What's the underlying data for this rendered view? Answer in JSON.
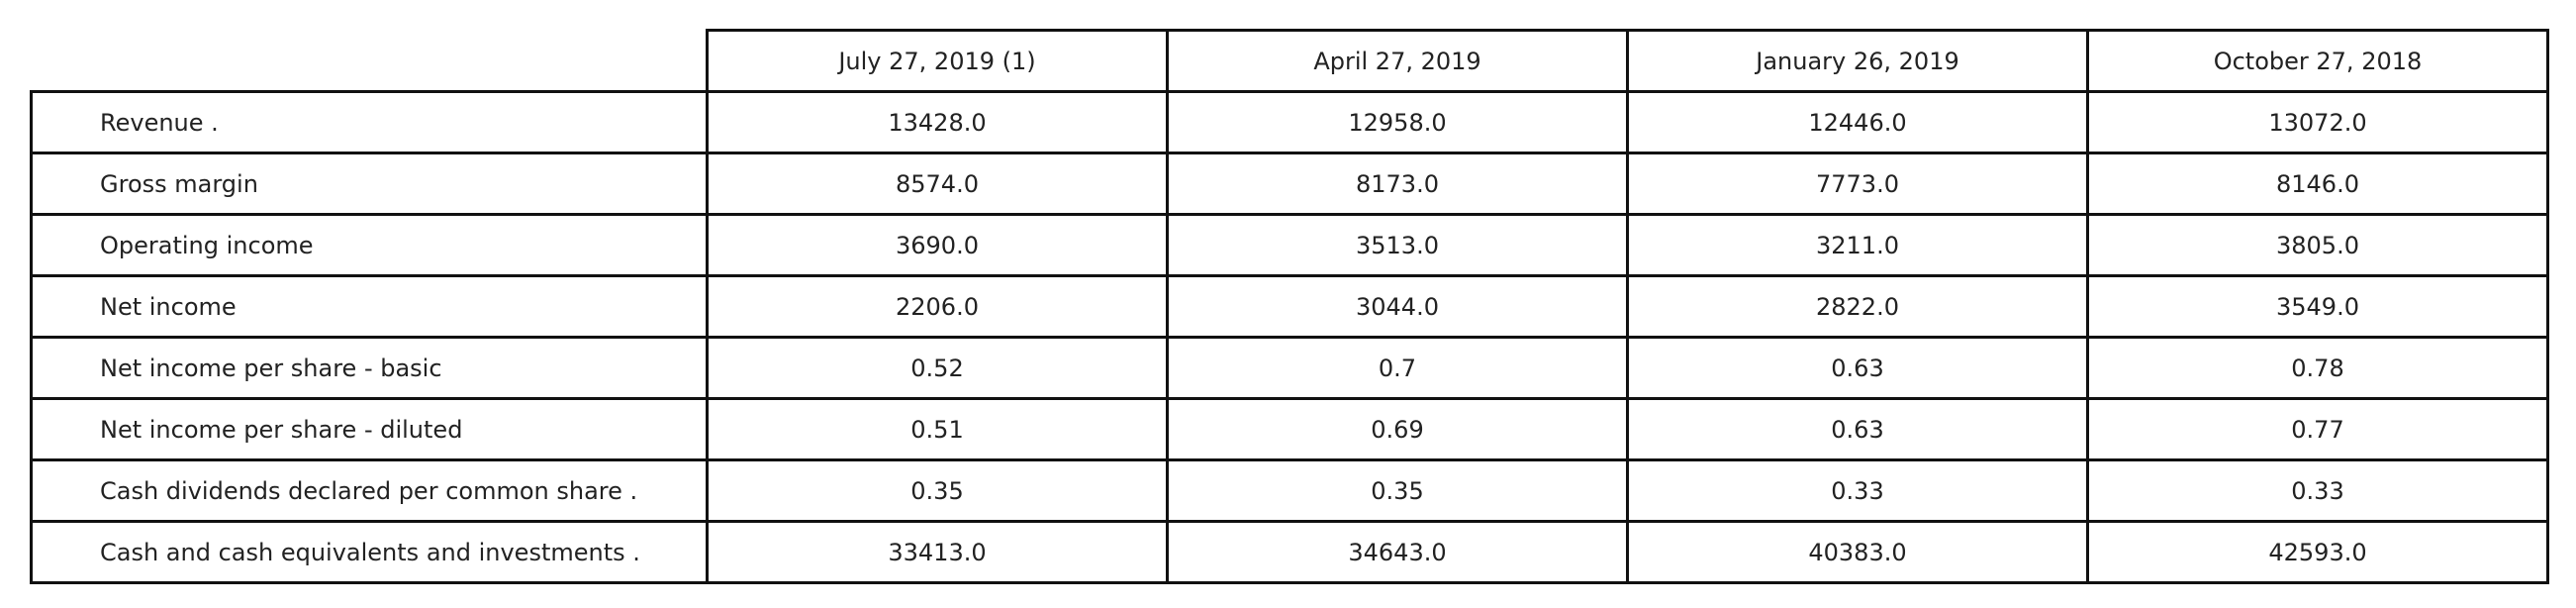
{
  "chart_data": {
    "type": "table",
    "columns": [
      "July 27, 2019 (1)",
      "April 27, 2019",
      "January 26, 2019",
      "October 27, 2018"
    ],
    "rows": [
      {
        "label": "Revenue .",
        "values": [
          "13428.0",
          "12958.0",
          "12446.0",
          "13072.0"
        ]
      },
      {
        "label": "Gross margin",
        "values": [
          "8574.0",
          "8173.0",
          "7773.0",
          "8146.0"
        ]
      },
      {
        "label": "Operating income",
        "values": [
          "3690.0",
          "3513.0",
          "3211.0",
          "3805.0"
        ]
      },
      {
        "label": "Net income",
        "values": [
          "2206.0",
          "3044.0",
          "2822.0",
          "3549.0"
        ]
      },
      {
        "label": "Net income per share - basic",
        "values": [
          "0.52",
          "0.7",
          "0.63",
          "0.78"
        ]
      },
      {
        "label": "Net income per share - diluted",
        "values": [
          "0.51",
          "0.69",
          "0.63",
          "0.77"
        ]
      },
      {
        "label": "Cash dividends declared per common share .",
        "values": [
          "0.35",
          "0.35",
          "0.33",
          "0.33"
        ]
      },
      {
        "label": "Cash and cash equivalents and investments .",
        "values": [
          "33413.0",
          "34643.0",
          "40383.0",
          "42593.0"
        ]
      }
    ]
  }
}
